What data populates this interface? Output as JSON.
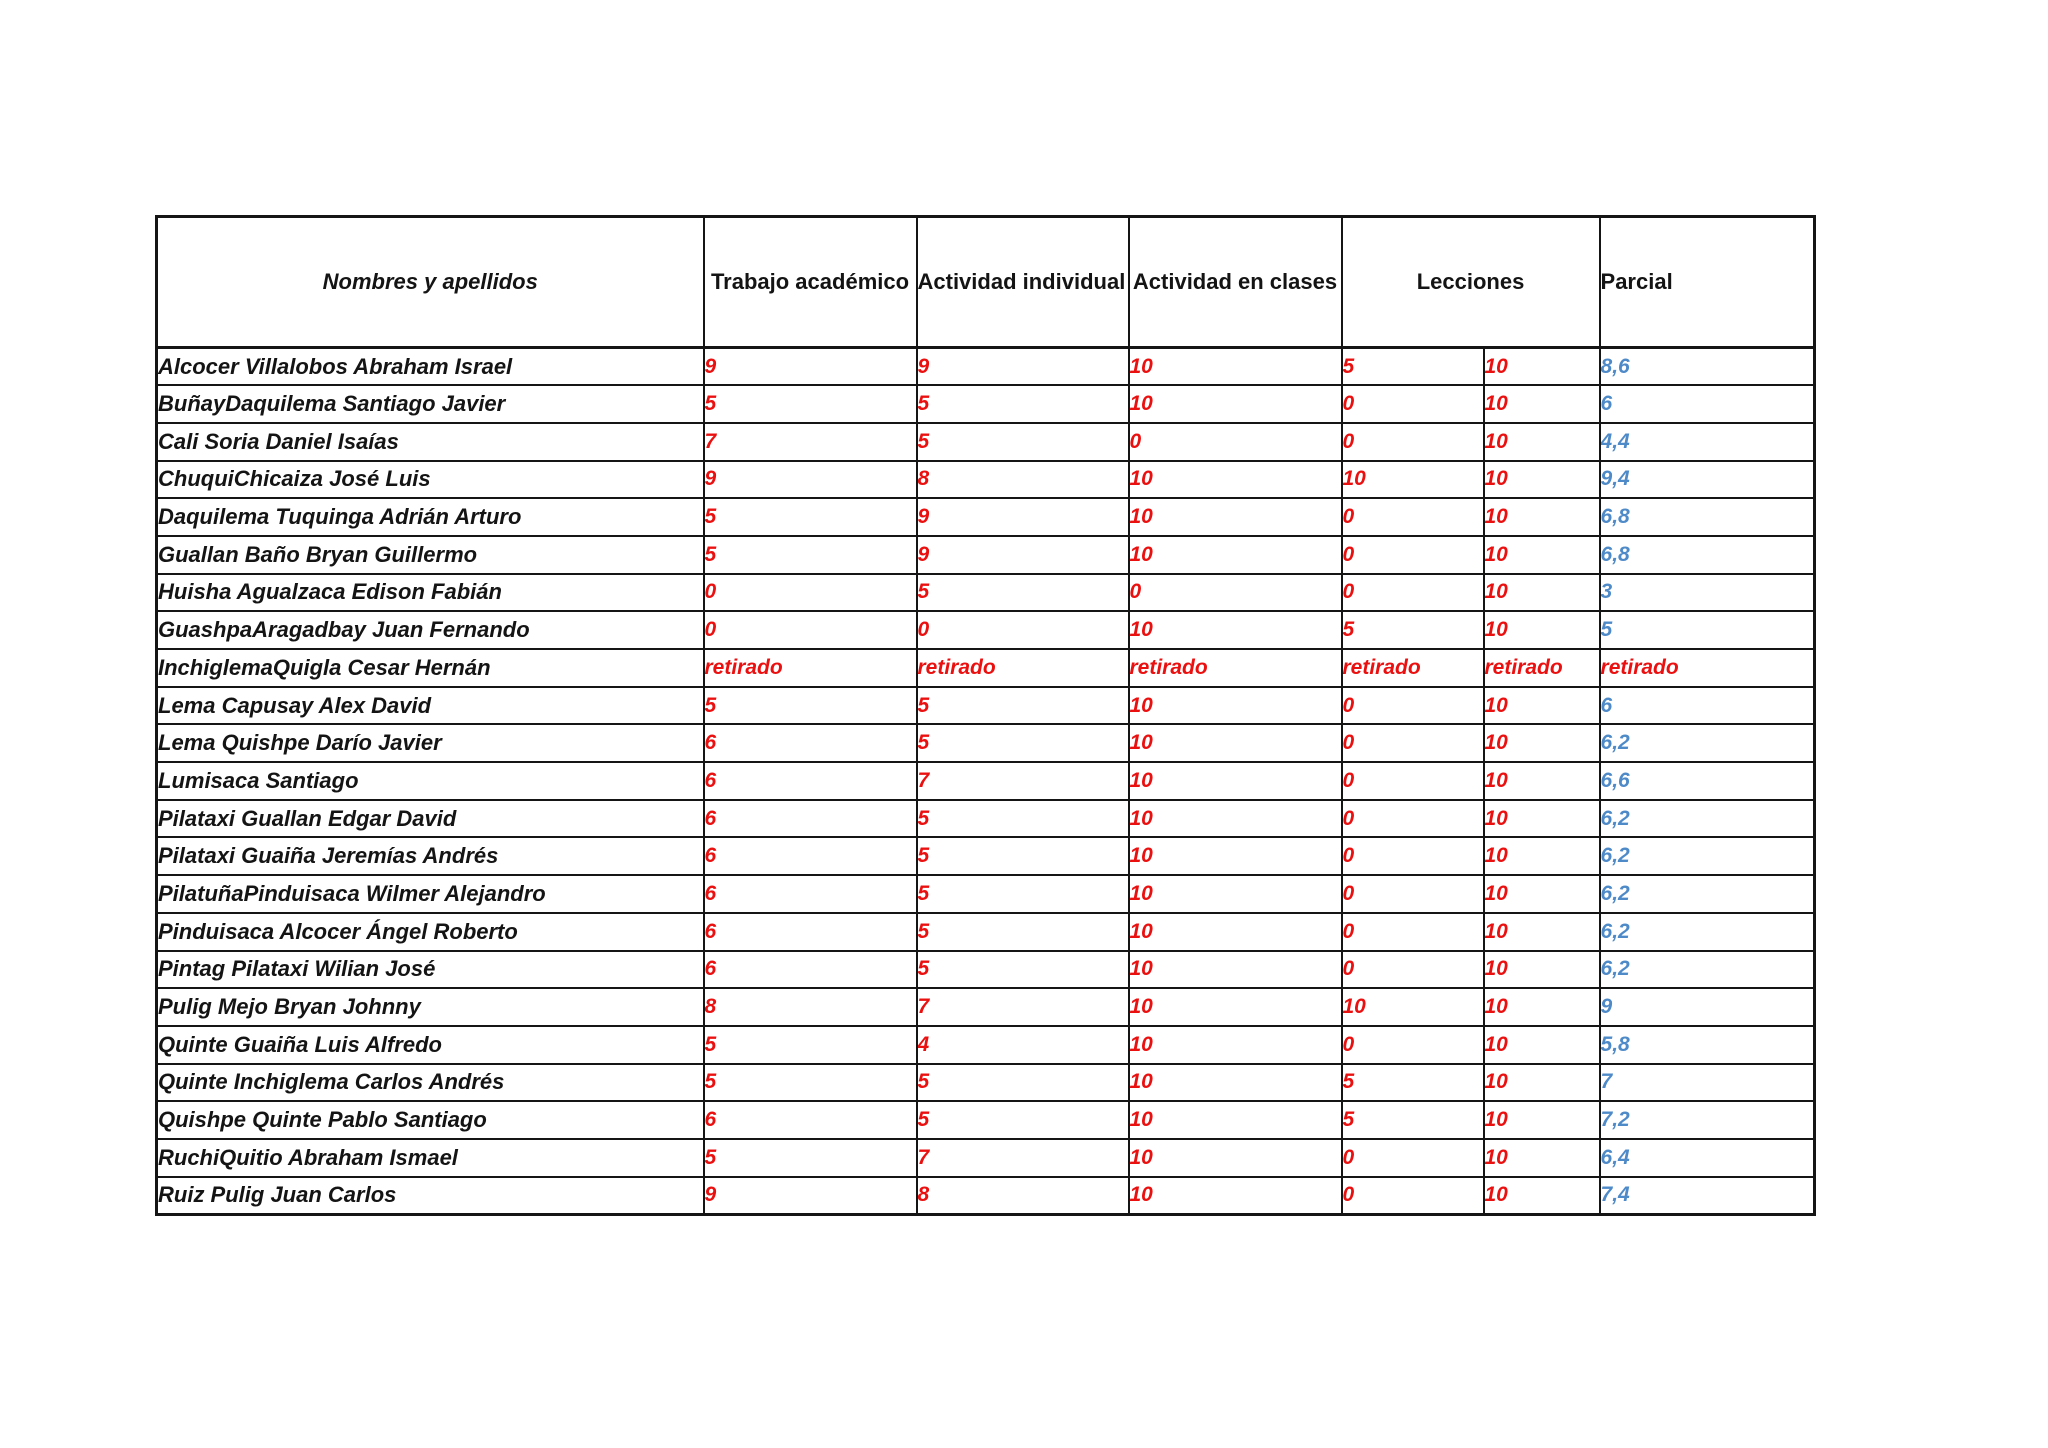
{
  "table": {
    "headers": {
      "names": "Nombres y apellidos",
      "trabajo_academico": "Trabajo académico",
      "actividad_individual": "Actividad individual",
      "actividad_en_clases": "Actividad en clases",
      "lecciones": "Lecciones",
      "parcial": "Parcial"
    },
    "rows": [
      {
        "name": "Alcocer Villalobos Abraham Israel",
        "values": [
          "9",
          "9",
          "10",
          "5",
          "10",
          "8,6"
        ]
      },
      {
        "name": "BuñayDaquilema Santiago Javier",
        "values": [
          "5",
          "5",
          "10",
          "0",
          "10",
          "6"
        ]
      },
      {
        "name": "Cali Soria Daniel Isaías",
        "values": [
          "7",
          "5",
          "0",
          "0",
          "10",
          "4,4"
        ]
      },
      {
        "name": "ChuquiChicaiza José Luis",
        "values": [
          "9",
          "8",
          "10",
          "10",
          "10",
          "9,4"
        ]
      },
      {
        "name": "Daquilema Tuquinga Adrián Arturo",
        "values": [
          "5",
          "9",
          "10",
          "0",
          "10",
          "6,8"
        ]
      },
      {
        "name": "Guallan Baño Bryan Guillermo",
        "values": [
          "5",
          "9",
          "10",
          "0",
          "10",
          "6,8"
        ]
      },
      {
        "name": "Huisha Agualzaca Edison Fabián",
        "values": [
          "0",
          "5",
          "0",
          "0",
          "10",
          "3"
        ]
      },
      {
        "name": "GuashpaAragadbay Juan Fernando",
        "values": [
          "0",
          "0",
          "10",
          "5",
          "10",
          "5"
        ]
      },
      {
        "name": "InchiglemaQuigla Cesar Hernán",
        "values": [
          "retirado",
          "retirado",
          "retirado",
          "retirado",
          "retirado",
          "retirado"
        ]
      },
      {
        "name": "Lema Capusay Alex David",
        "values": [
          "5",
          "5",
          "10",
          "0",
          "10",
          "6"
        ]
      },
      {
        "name": "Lema Quishpe Darío Javier",
        "values": [
          "6",
          "5",
          "10",
          "0",
          "10",
          "6,2"
        ]
      },
      {
        "name": "Lumisaca Santiago",
        "values": [
          "6",
          "7",
          "10",
          "0",
          "10",
          "6,6"
        ]
      },
      {
        "name": "Pilataxi Guallan Edgar David",
        "values": [
          "6",
          "5",
          "10",
          "0",
          "10",
          "6,2"
        ]
      },
      {
        "name": "Pilataxi Guaiña Jeremías Andrés",
        "values": [
          "6",
          "5",
          "10",
          "0",
          "10",
          "6,2"
        ]
      },
      {
        "name": "PilatuñaPinduisaca Wilmer Alejandro",
        "values": [
          "6",
          "5",
          "10",
          "0",
          "10",
          "6,2"
        ]
      },
      {
        "name": "Pinduisaca Alcocer Ángel Roberto",
        "values": [
          "6",
          "5",
          "10",
          "0",
          "10",
          "6,2"
        ]
      },
      {
        "name": "Pintag Pilataxi Wilian José",
        "values": [
          "6",
          "5",
          "10",
          "0",
          "10",
          "6,2"
        ]
      },
      {
        "name": "Pulig Mejo Bryan Johnny",
        "values": [
          "8",
          "7",
          "10",
          "10",
          "10",
          "9"
        ]
      },
      {
        "name": "Quinte Guaiña Luis Alfredo",
        "values": [
          "5",
          "4",
          "10",
          "0",
          "10",
          "5,8"
        ]
      },
      {
        "name": "Quinte Inchiglema Carlos Andrés",
        "values": [
          "5",
          "5",
          "10",
          "5",
          "10",
          "7"
        ]
      },
      {
        "name": "Quishpe Quinte Pablo Santiago",
        "values": [
          "6",
          "5",
          "10",
          "5",
          "10",
          "7,2"
        ]
      },
      {
        "name": "RuchiQuitio Abraham Ismael",
        "values": [
          "5",
          "7",
          "10",
          "0",
          "10",
          "6,4"
        ]
      },
      {
        "name": "Ruiz Pulig Juan Carlos",
        "values": [
          "9",
          "8",
          "10",
          "0",
          "10",
          "7,4"
        ]
      }
    ],
    "retired_label": "retirado"
  },
  "colors": {
    "grade_red": "#eb1010",
    "parcial_blue": "#4e8ac8",
    "border": "#151515",
    "background": "#ffffff"
  }
}
